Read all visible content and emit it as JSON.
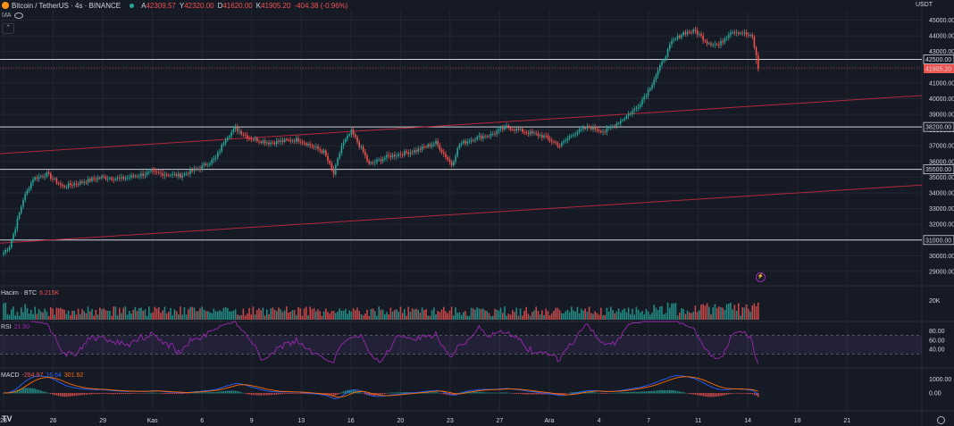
{
  "header": {
    "symbol": "Bitcoin / TetherUS · 4s · BINANCE",
    "o_label": "A",
    "o": "42309.57",
    "h_label": "Y",
    "h": "42320.00",
    "l_label": "D",
    "l": "41620.00",
    "c_label": "K",
    "c": "41905.20",
    "change": "-404.38 (-0.96%)",
    "ma_label": "MA"
  },
  "colors": {
    "up": "#26a69a",
    "down": "#ef5350",
    "bg": "#161a25",
    "grid": "#232733",
    "channel": "#b2283a",
    "rsi": "#9c27b0",
    "macd": "#2962ff",
    "signal": "#ff6d00"
  },
  "currency": "USDT",
  "price_axis": {
    "ticks": [
      "45000.00",
      "44000.00",
      "43000.00",
      "42000.00",
      "41000.00",
      "40000.00",
      "39000.00",
      "38000.00",
      "37000.00",
      "36000.00",
      "35000.00",
      "34000.00",
      "33000.00",
      "32000.00",
      "31000.00",
      "30000.00",
      "29000.00"
    ]
  },
  "levels": [
    {
      "value": 42500,
      "label": "42500.00"
    },
    {
      "value": 38200,
      "label": "38200.00"
    },
    {
      "value": 35500,
      "label": "35500.00"
    },
    {
      "value": 31000,
      "label": "31000.00"
    }
  ],
  "last_price": {
    "value": 41905.2,
    "label": "41905.20"
  },
  "volume": {
    "title": "Hacim · BTC",
    "value": "6.215K",
    "tick": "20K"
  },
  "rsi": {
    "title": "RSI",
    "value": "21.90",
    "ticks": [
      "80.00",
      "60.00",
      "40.00"
    ]
  },
  "macd": {
    "title": "MACD",
    "v1": "-284.97",
    "v2": "16.64",
    "v3": "301.62",
    "ticks": [
      "1000.00",
      "0.00"
    ]
  },
  "time_axis": [
    "23",
    "26",
    "29",
    "Kas",
    "6",
    "9",
    "13",
    "16",
    "20",
    "23",
    "27",
    "Ara",
    "4",
    "7",
    "11",
    "14",
    "18",
    "21"
  ],
  "chart_data": {
    "type": "candlestick",
    "symbol": "Bitcoin / TetherUS",
    "interval": "4s",
    "ylim": [
      28200,
      45600
    ],
    "channel": [
      {
        "from": 30800,
        "to": 34500
      },
      {
        "from": 36500,
        "to": 40200
      }
    ],
    "anchors": [
      [
        0,
        30200
      ],
      [
        3,
        30600
      ],
      [
        6,
        31800
      ],
      [
        10,
        33600
      ],
      [
        15,
        34900
      ],
      [
        22,
        35200
      ],
      [
        30,
        34400
      ],
      [
        40,
        34700
      ],
      [
        50,
        35000
      ],
      [
        60,
        34900
      ],
      [
        75,
        35300
      ],
      [
        90,
        35100
      ],
      [
        100,
        35600
      ],
      [
        108,
        36200
      ],
      [
        113,
        37500
      ],
      [
        118,
        38100
      ],
      [
        125,
        37500
      ],
      [
        135,
        37200
      ],
      [
        150,
        37400
      ],
      [
        163,
        36600
      ],
      [
        168,
        35200
      ],
      [
        172,
        37000
      ],
      [
        177,
        37900
      ],
      [
        183,
        36600
      ],
      [
        186,
        35800
      ],
      [
        195,
        36300
      ],
      [
        210,
        36700
      ],
      [
        220,
        37200
      ],
      [
        228,
        35800
      ],
      [
        232,
        37100
      ],
      [
        240,
        37500
      ],
      [
        248,
        37700
      ],
      [
        256,
        38200
      ],
      [
        265,
        37900
      ],
      [
        275,
        37600
      ],
      [
        283,
        37000
      ],
      [
        290,
        37800
      ],
      [
        298,
        38200
      ],
      [
        306,
        37900
      ],
      [
        314,
        38600
      ],
      [
        322,
        39400
      ],
      [
        328,
        40500
      ],
      [
        334,
        42000
      ],
      [
        340,
        43600
      ],
      [
        346,
        44200
      ],
      [
        352,
        44300
      ],
      [
        358,
        43600
      ],
      [
        364,
        43400
      ],
      [
        370,
        44300
      ],
      [
        376,
        44200
      ],
      [
        381,
        43900
      ],
      [
        384,
        42100
      ]
    ]
  }
}
